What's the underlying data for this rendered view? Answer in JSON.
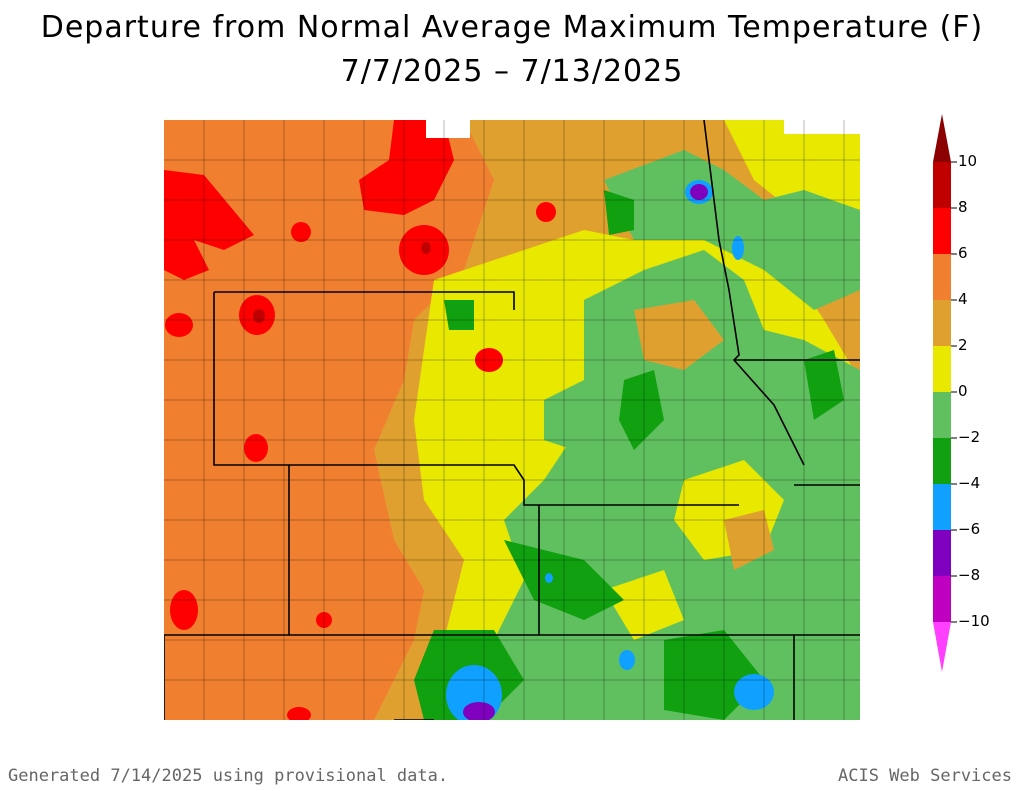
{
  "title": {
    "line1": "Departure from Normal Average Maximum Temperature (F)",
    "line2": "7/7/2025 – 7/13/2025"
  },
  "legend": {
    "labels": [
      "10",
      "8",
      "6",
      "4",
      "2",
      "0",
      "−2",
      "−4",
      "−6",
      "−8",
      "−10"
    ],
    "colors": {
      "above_10": "#8b0000",
      "8_10": "#c00000",
      "6_8": "#ff0000",
      "4_6": "#f08030",
      "2_4": "#e0a030",
      "0_2": "#e8e800",
      "m2_0": "#60c060",
      "m4_m2": "#10a010",
      "m6_m4": "#10a0ff",
      "m8_m6": "#8000c0",
      "m10_m8": "#c000c0",
      "below_m10": "#ff40ff"
    }
  },
  "footer": {
    "left": "Generated 7/14/2025 using provisional data.",
    "right": "ACIS Web Services"
  }
}
